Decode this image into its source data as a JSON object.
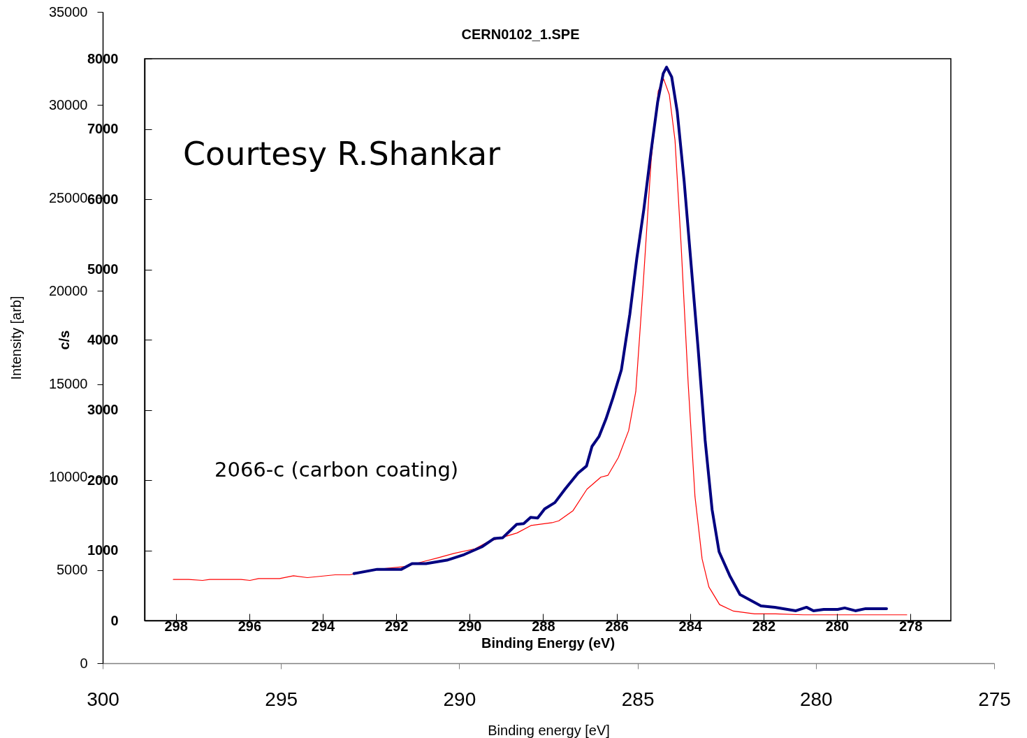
{
  "chart_data": [
    {
      "type": "line",
      "xlabel": "Binding energy [eV]",
      "ylabel": "Intensity [arb]",
      "xlim": [
        300,
        275
      ],
      "xticks": [
        300,
        295,
        290,
        285,
        280,
        275
      ],
      "ylim": [
        0,
        35000
      ],
      "yticks": [
        0,
        5000,
        10000,
        15000,
        20000,
        25000,
        30000,
        35000
      ],
      "grid": false,
      "series": [
        {
          "color": "#ff0000",
          "x": [
            298.02,
            297.59,
            297.2,
            297.0,
            296.12,
            295.87,
            295.63,
            295.04,
            294.65,
            294.26,
            293.48,
            293.08,
            292.3,
            291.52,
            290.93,
            290.63,
            290.15,
            289.56,
            289.17,
            288.38,
            287.99,
            287.4,
            287.21,
            286.81,
            286.42,
            286.03,
            285.83,
            285.54,
            285.25,
            285.05,
            284.86,
            284.62,
            284.42,
            284.27,
            284.11,
            283.95,
            283.78,
            283.58,
            283.39,
            283.19,
            283.0,
            282.7,
            282.31,
            281.72,
            281.13,
            280.35,
            279.37,
            277.45
          ],
          "values": [
            4500,
            4500,
            4450,
            4500,
            4500,
            4450,
            4550,
            4550,
            4700,
            4600,
            4750,
            4750,
            5050,
            5200,
            5500,
            5650,
            5900,
            6150,
            6550,
            7000,
            7400,
            7550,
            7650,
            8200,
            9350,
            10000,
            10100,
            11050,
            12500,
            14600,
            19850,
            27000,
            30750,
            31400,
            30550,
            28100,
            22500,
            15000,
            8950,
            5600,
            4100,
            3150,
            2800,
            2650,
            2650,
            2600,
            2600,
            2600
          ]
        }
      ]
    },
    {
      "type": "line",
      "title": "CERN0102_1.SPE",
      "xlabel": "Binding Energy (eV)",
      "ylabel": "c/s",
      "xlim": [
        298.85,
        276.9
      ],
      "xticks": [
        298,
        296,
        294,
        292,
        290,
        288,
        286,
        284,
        282,
        280,
        278
      ],
      "ylim": [
        0,
        8000
      ],
      "yticks": [
        0,
        1000,
        2000,
        3000,
        4000,
        5000,
        6000,
        7000,
        8000
      ],
      "grid": false,
      "annotations": [
        "Courtesy R.Shankar",
        "2066-c (carbon coating)"
      ],
      "series": [
        {
          "color": "#000080",
          "x": [
            293.15,
            292.52,
            291.86,
            291.57,
            291.19,
            290.62,
            290.15,
            289.67,
            289.33,
            289.1,
            288.72,
            288.53,
            288.34,
            288.15,
            287.96,
            287.68,
            287.39,
            287.05,
            286.82,
            286.67,
            286.48,
            286.29,
            286.1,
            285.87,
            285.64,
            285.45,
            285.26,
            285.07,
            284.88,
            284.73,
            284.64,
            284.5,
            284.35,
            284.16,
            283.97,
            283.78,
            283.59,
            283.4,
            283.21,
            282.92,
            282.64,
            282.07,
            281.69,
            281.12,
            280.83,
            280.64,
            280.36,
            279.98,
            279.79,
            279.5,
            279.22,
            278.65
          ],
          "values": [
            670,
            730,
            730,
            810,
            810,
            860,
            940,
            1050,
            1170,
            1180,
            1370,
            1380,
            1470,
            1460,
            1590,
            1680,
            1880,
            2100,
            2200,
            2480,
            2620,
            2870,
            3170,
            3570,
            4360,
            5160,
            5850,
            6650,
            7390,
            7790,
            7880,
            7740,
            7250,
            6250,
            5060,
            3870,
            2570,
            1580,
            980,
            640,
            370,
            210,
            190,
            140,
            190,
            140,
            160,
            160,
            180,
            140,
            170,
            170
          ]
        }
      ]
    }
  ]
}
